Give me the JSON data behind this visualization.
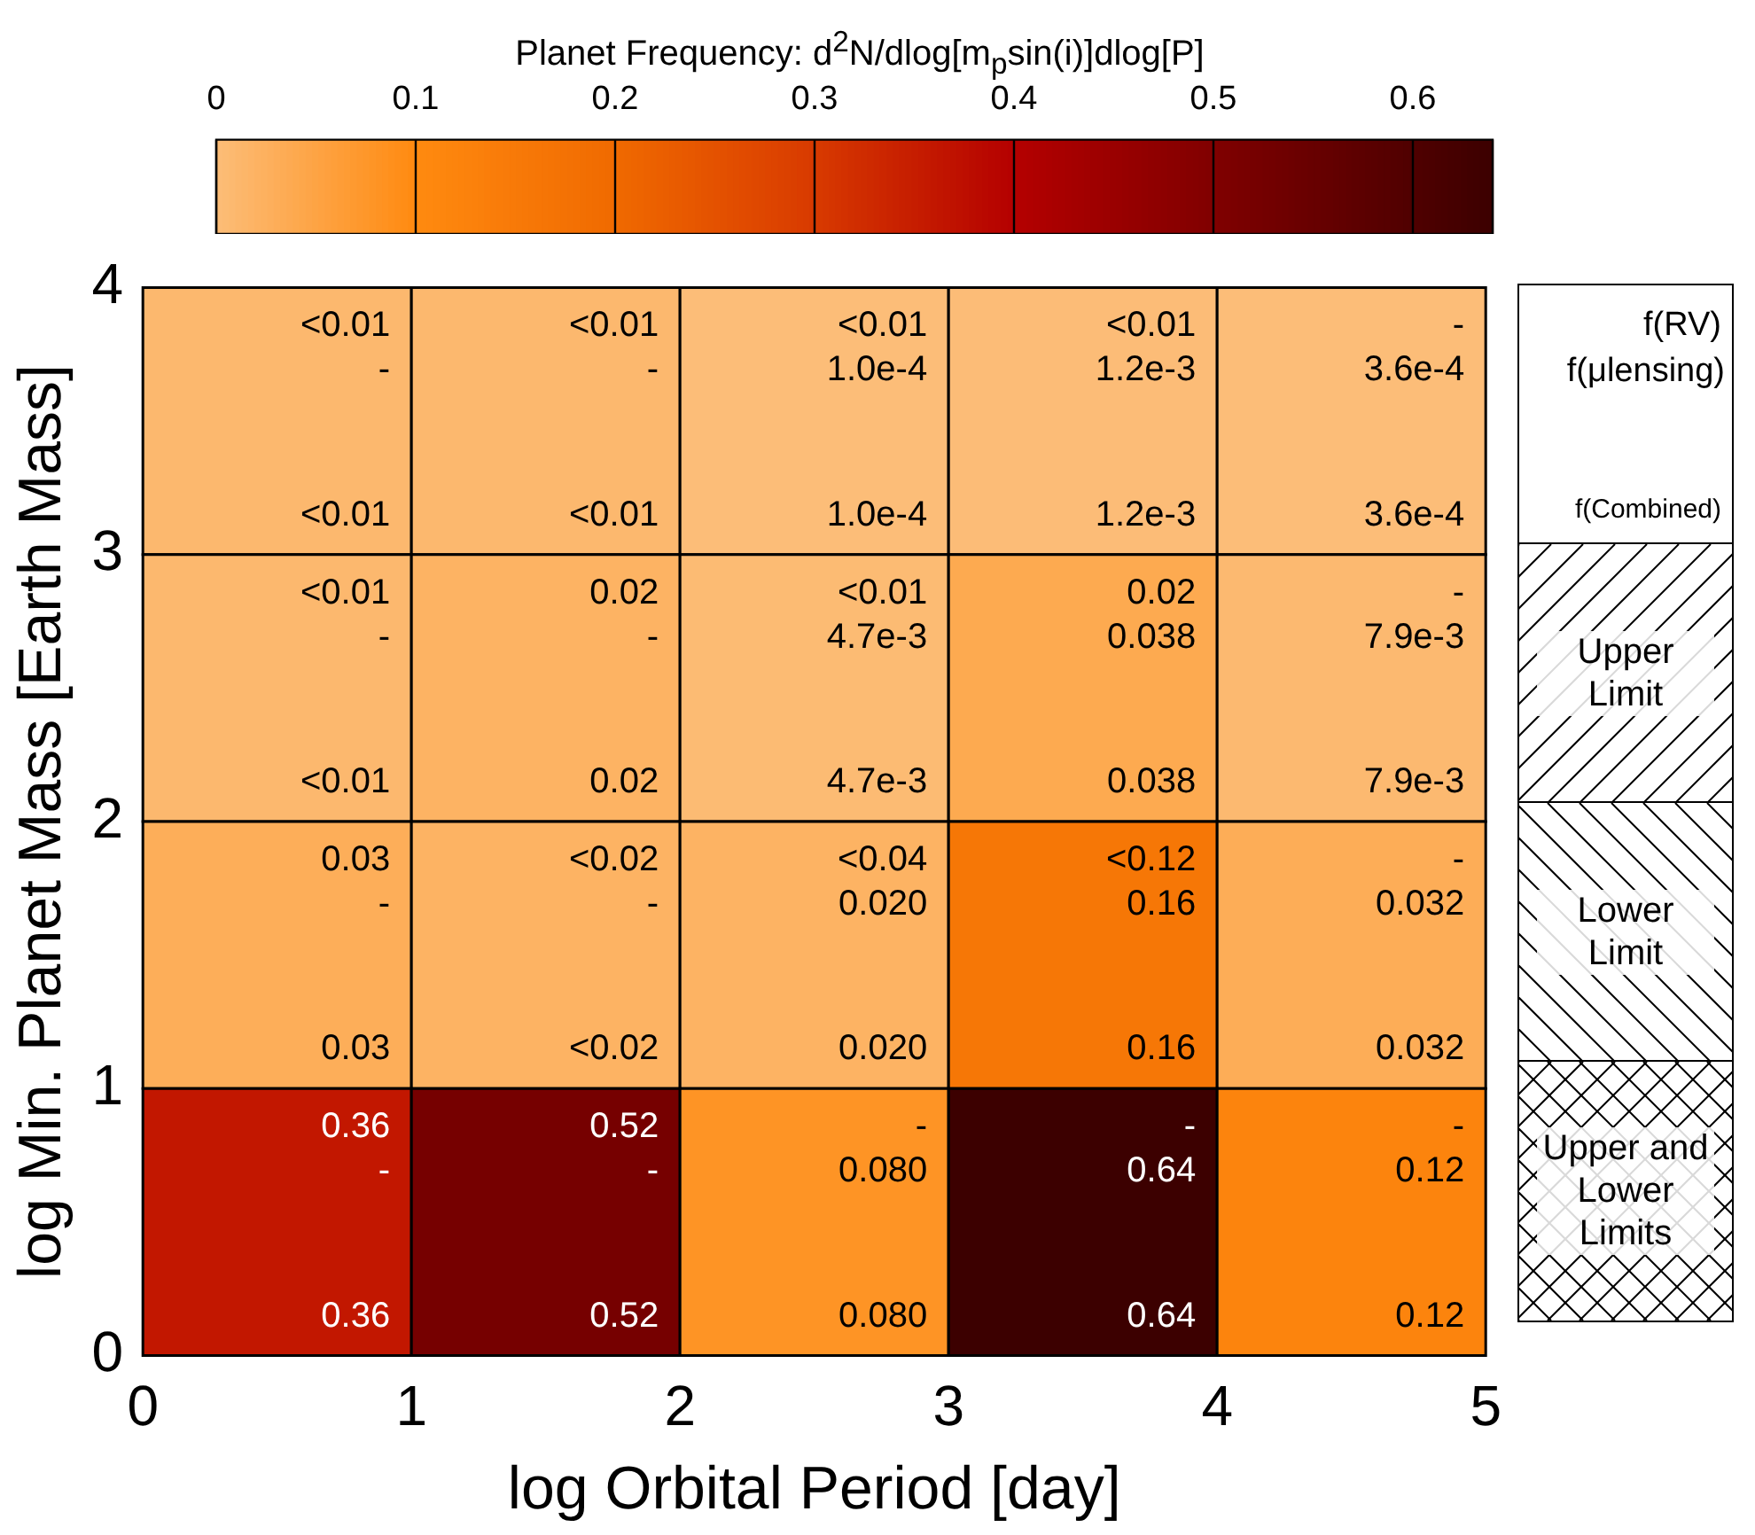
{
  "chart_data": {
    "type": "heatmap",
    "clabel": "Planet Frequency: d$^{2}$N/dlog[m$_{p}$sin(i)]dlog[P]",
    "xlabel": "log Orbital Period [day]",
    "ylabel": "log Min. Planet Mass [Earth Mass]",
    "xlim": [
      0,
      5
    ],
    "xticks": [
      0,
      1,
      2,
      3,
      4,
      5
    ],
    "ylim": [
      0,
      4
    ],
    "yticks": [
      0,
      1,
      2,
      3,
      4
    ],
    "clim": [
      0,
      0.64
    ],
    "cticks": [
      0,
      0.1,
      0.2,
      0.3,
      0.4,
      0.5,
      0.6
    ],
    "cells": [
      [
        0.01,
        0.01,
        0.0001,
        0.0012,
        0.00036
      ],
      [
        0.01,
        0.02,
        0.0047,
        0.038,
        0.0079
      ],
      [
        0.03,
        0.02,
        0.02,
        0.16,
        0.032
      ],
      [
        0.36,
        0.52,
        0.08,
        0.64,
        0.12
      ]
    ],
    "cell_labels": [
      [
        "<0.01\n-\n<0.01",
        "<0.01\n-\n<0.01",
        "<0.01\n1.0e-4\n1.0e-4",
        "<0.01\n1.2e-3\n1.2e-3",
        "-\n3.6e-4\n3.6e-4"
      ],
      [
        "<0.01\n-\n<0.01",
        "0.02\n-\n0.02",
        "<0.01\n4.7e-3\n4.7e-3",
        "0.02\n0.038\n0.038",
        "-\n7.9e-3\n7.9e-3"
      ],
      [
        "0.03\n-\n0.03",
        "<0.02\n-\n<0.02",
        "<0.04\n0.020\n0.020",
        "<0.12\n0.16\n0.16",
        "-\n0.032\n0.032"
      ],
      [
        "0.36\n-\n0.36",
        "0.52\n-\n0.52",
        "-\n0.080\n0.080",
        "-\n0.64\n0.64",
        "-\n0.12\n0.12"
      ]
    ],
    "annotations": [
      "f(RV)",
      "f(μlensing)",
      "f(Combined)",
      "Upper Limit",
      "Lower Limit",
      "Upper and Lower Limits"
    ]
  }
}
